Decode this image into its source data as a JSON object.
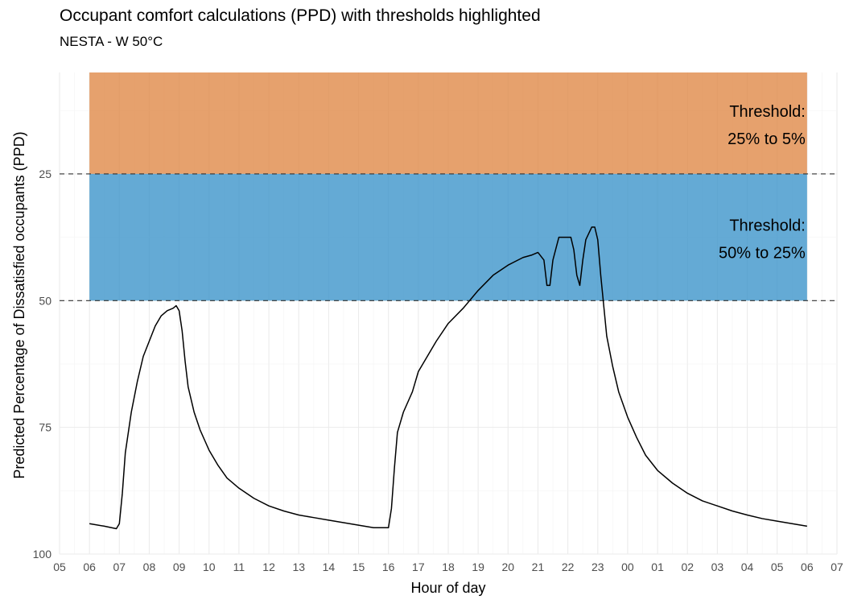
{
  "chart_data": {
    "type": "line",
    "title": "Occupant comfort calculations (PPD) with thresholds highlighted",
    "subtitle": "NESTA - W 50°C",
    "xlabel": "Hour of day",
    "ylabel": "Predicted Percentage of Dissatisfied occupants (PPD)",
    "x_tick_labels": [
      "05",
      "06",
      "07",
      "08",
      "09",
      "10",
      "11",
      "12",
      "13",
      "14",
      "15",
      "16",
      "17",
      "18",
      "19",
      "20",
      "21",
      "22",
      "23",
      "00",
      "01",
      "02",
      "03",
      "04",
      "05",
      "06",
      "07"
    ],
    "x_range_hours": [
      5,
      31
    ],
    "y_ticks": [
      25,
      50,
      75,
      100
    ],
    "y_range": [
      5,
      100
    ],
    "y_reversed": true,
    "grid": true,
    "bands": [
      {
        "label_line1": "Threshold:",
        "label_line2": "25% to 5%",
        "ymin": 5,
        "ymax": 25,
        "x_start": 6,
        "x_end": 30,
        "color": "#e08a49"
      },
      {
        "label_line1": "Threshold:",
        "label_line2": "50% to 25%",
        "ymin": 25,
        "ymax": 50,
        "x_start": 6,
        "x_end": 30,
        "color": "#3d95cb"
      }
    ],
    "threshold_lines": [
      25,
      50
    ],
    "line_color": "#000000",
    "series": [
      {
        "x": [
          6.0,
          6.5,
          6.9,
          7.0,
          7.1,
          7.2,
          7.4,
          7.6,
          7.8,
          8.0,
          8.2,
          8.4,
          8.6,
          8.8,
          8.9,
          9.0,
          9.1,
          9.2,
          9.3,
          9.5,
          9.7,
          10.0,
          10.3,
          10.6,
          11.0,
          11.5,
          12.0,
          12.5,
          13.0,
          13.5,
          14.0,
          14.5,
          15.0,
          15.5,
          16.0,
          16.1,
          16.2,
          16.3,
          16.5,
          16.8,
          17.0,
          17.3,
          17.6,
          18.0,
          18.5,
          19.0,
          19.5,
          20.0,
          20.5,
          20.8,
          21.0,
          21.2,
          21.3,
          21.4,
          21.5,
          21.7,
          21.9,
          22.1,
          22.2,
          22.3,
          22.4,
          22.5,
          22.6,
          22.8,
          22.9,
          23.0,
          23.1,
          23.2,
          23.3,
          23.5,
          23.7,
          24.0,
          24.3,
          24.6,
          25.0,
          25.5,
          26.0,
          26.5,
          27.0,
          27.5,
          28.0,
          28.5,
          29.0,
          29.5,
          30.0
        ],
        "y": [
          94,
          94.5,
          95,
          94,
          88,
          80,
          72,
          66,
          61,
          58,
          55,
          53,
          52,
          51.5,
          51,
          52,
          56,
          62,
          67,
          72,
          75.5,
          79.5,
          82.5,
          85,
          87,
          89,
          90.5,
          91.5,
          92.3,
          92.8,
          93.3,
          93.8,
          94.3,
          94.8,
          94.8,
          91,
          83,
          76,
          72,
          68,
          64,
          61,
          58,
          54.5,
          51.5,
          48,
          45,
          43,
          41.5,
          41,
          40.5,
          42,
          47,
          47,
          42,
          37.5,
          37.5,
          37.5,
          40,
          45,
          47,
          42,
          38,
          35.5,
          35.5,
          38,
          45,
          51,
          57,
          63,
          68,
          73,
          77,
          80.5,
          83.5,
          86,
          88,
          89.5,
          90.5,
          91.5,
          92.3,
          93,
          93.5,
          94,
          94.5
        ]
      }
    ]
  }
}
